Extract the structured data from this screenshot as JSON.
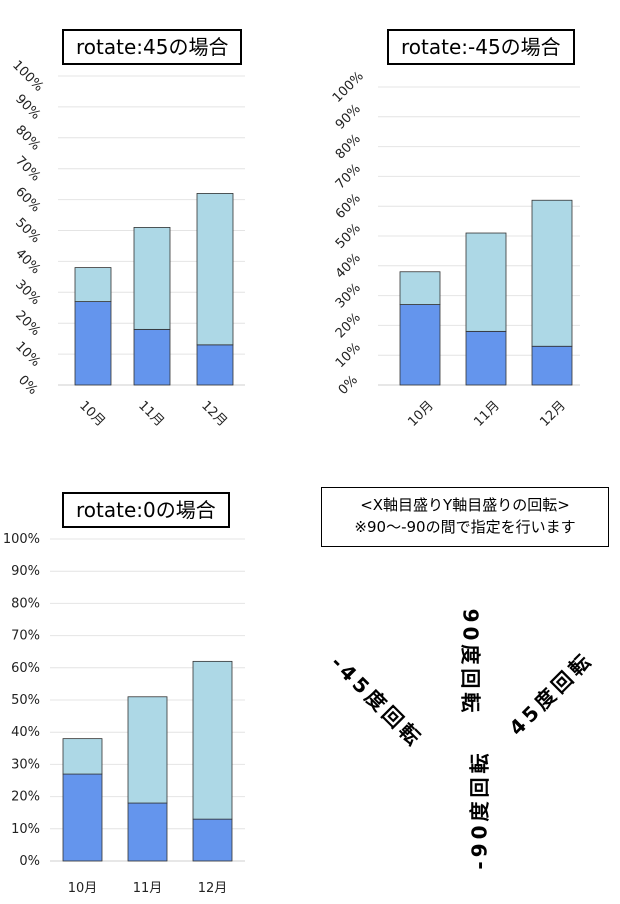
{
  "chart_data": [
    {
      "type": "bar",
      "stacked": true,
      "title": "rotate:45の場合",
      "tick_rotation": 45,
      "categories": [
        "10月",
        "11月",
        "12月"
      ],
      "series": [
        {
          "values": [
            27,
            18,
            13
          ],
          "color": "#6495ed"
        },
        {
          "values": [
            11,
            33,
            49
          ],
          "color": "#add8e6"
        }
      ],
      "ylim": [
        0,
        100
      ],
      "yticks": [
        "0%",
        "10%",
        "20%",
        "30%",
        "40%",
        "50%",
        "60%",
        "70%",
        "80%",
        "90%",
        "100%"
      ],
      "grid": true
    },
    {
      "type": "bar",
      "stacked": true,
      "title": "rotate:-45の場合",
      "tick_rotation": -45,
      "categories": [
        "10月",
        "11月",
        "12月"
      ],
      "series": [
        {
          "values": [
            27,
            18,
            13
          ],
          "color": "#6495ed"
        },
        {
          "values": [
            11,
            33,
            49
          ],
          "color": "#add8e6"
        }
      ],
      "ylim": [
        0,
        100
      ],
      "yticks": [
        "0%",
        "10%",
        "20%",
        "30%",
        "40%",
        "50%",
        "60%",
        "70%",
        "80%",
        "90%",
        "100%"
      ],
      "grid": true
    },
    {
      "type": "bar",
      "stacked": true,
      "title": "rotate:0の場合",
      "tick_rotation": 0,
      "categories": [
        "10月",
        "11月",
        "12月"
      ],
      "series": [
        {
          "values": [
            27,
            18,
            13
          ],
          "color": "#6495ed"
        },
        {
          "values": [
            11,
            33,
            49
          ],
          "color": "#add8e6"
        }
      ],
      "ylim": [
        0,
        100
      ],
      "yticks": [
        "0%",
        "10%",
        "20%",
        "30%",
        "40%",
        "50%",
        "60%",
        "70%",
        "80%",
        "90%",
        "100%"
      ],
      "grid": true
    }
  ],
  "note": {
    "line1": "<X軸目盛りY軸目盛りの回転>",
    "line2": "※90～-90の間で指定を行います"
  },
  "rotation_labels": {
    "minus45": "-45度回転",
    "plus90": "90度回転",
    "minus90": "-90度回転",
    "plus45": "45度回転"
  }
}
